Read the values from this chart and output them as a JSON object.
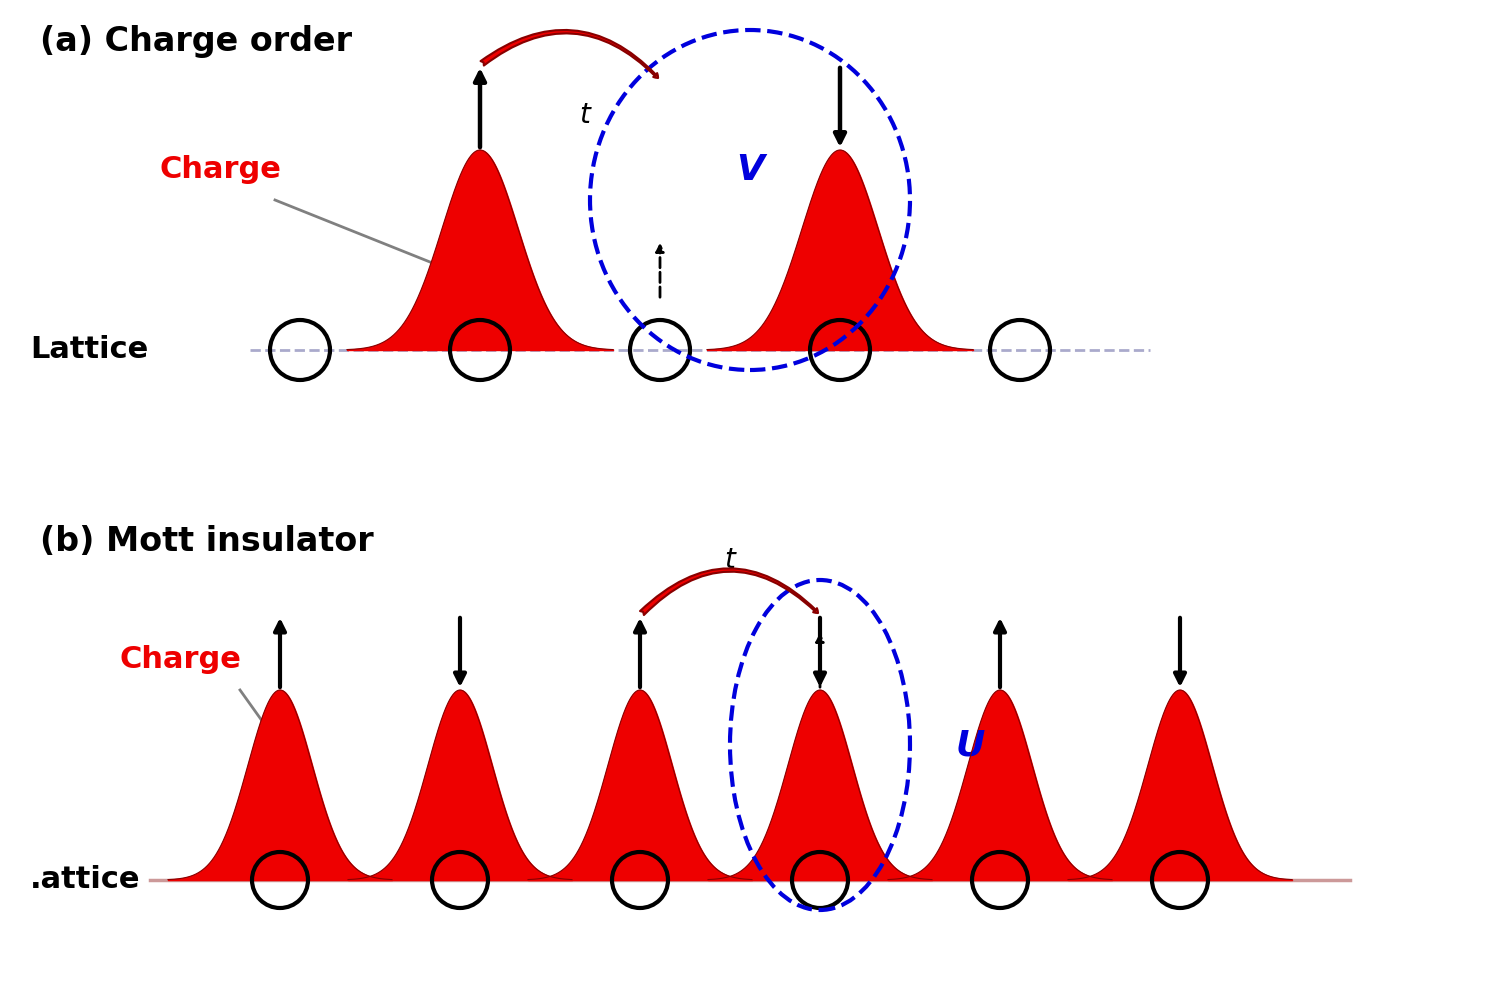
{
  "panel_a_title": "(a) Charge order",
  "panel_b_title": "(b) Mott insulator",
  "charge_label": "Charge",
  "lattice_label_a": "Lattice",
  "lattice_label_b": ".attice",
  "t_label": "t",
  "V_label": "V",
  "U_label": "U",
  "bg_color": "#ffffff",
  "red_fill": "#ee0000",
  "red_dark": "#880000",
  "blue_color": "#0000dd",
  "black_color": "#000000",
  "gray_line": "#aaaacc",
  "gray_line_b": "#cc9999"
}
